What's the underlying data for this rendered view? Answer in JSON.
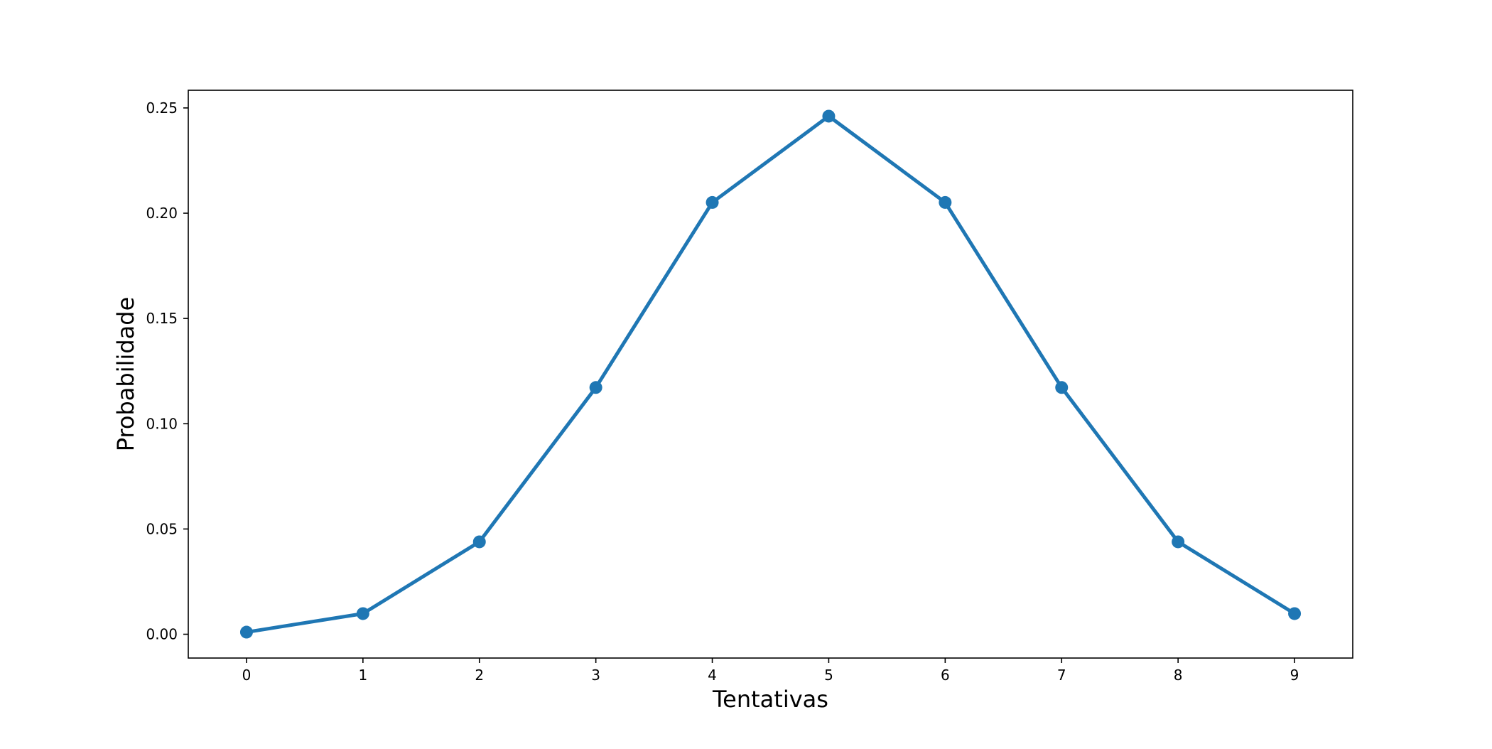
{
  "chart_data": {
    "type": "line",
    "title": "",
    "xlabel": "Tentativas",
    "ylabel": "Probabilidade",
    "x": [
      0,
      1,
      2,
      3,
      4,
      5,
      6,
      7,
      8,
      9
    ],
    "series": [
      {
        "values": [
          0.001,
          0.0098,
          0.0439,
          0.1172,
          0.2051,
          0.2461,
          0.2051,
          0.1172,
          0.0439,
          0.0098
        ]
      }
    ],
    "xlim": [
      -0.5,
      9.5
    ],
    "ylim": [
      -0.0113,
      0.2584
    ],
    "x_ticks": [
      "0",
      "1",
      "2",
      "3",
      "4",
      "5",
      "6",
      "7",
      "8",
      "9"
    ],
    "y_ticks": [
      "0.00",
      "0.05",
      "0.10",
      "0.15",
      "0.20",
      "0.25"
    ],
    "grid": false,
    "legend": "none",
    "line_color": "#1f77b4",
    "marker": "circle"
  }
}
